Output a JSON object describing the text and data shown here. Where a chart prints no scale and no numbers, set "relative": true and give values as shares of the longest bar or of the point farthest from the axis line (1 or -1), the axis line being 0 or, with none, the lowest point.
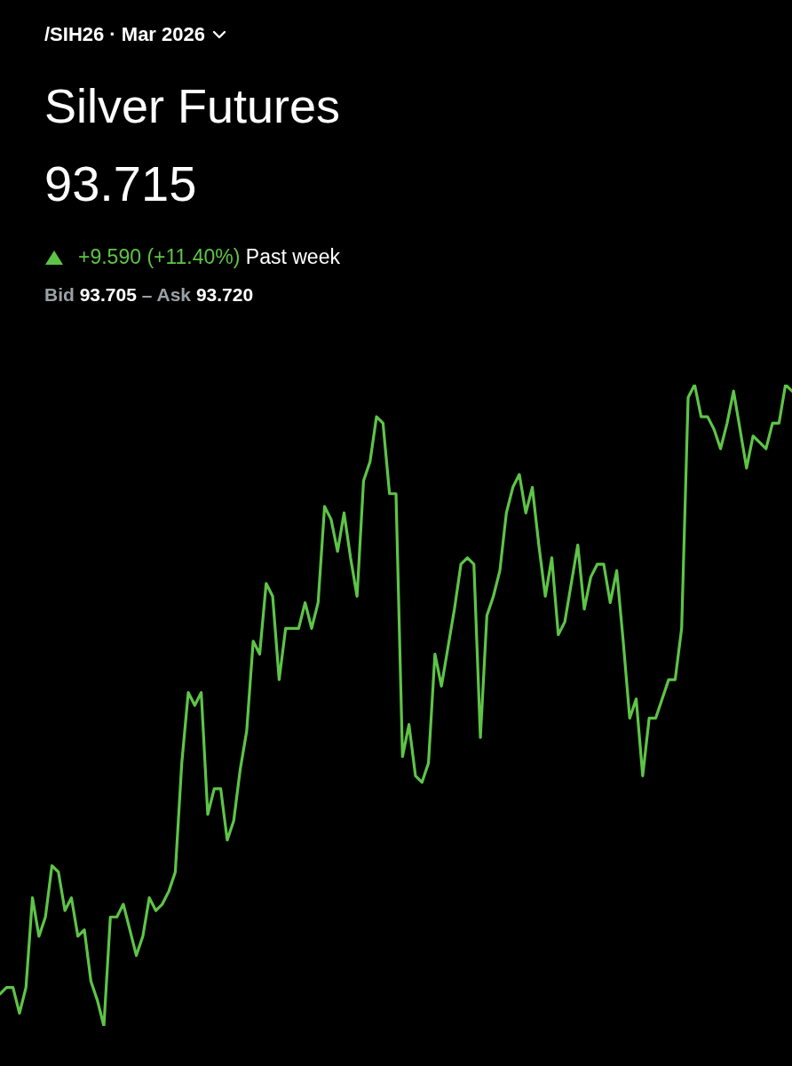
{
  "chart_data": {
    "type": "line",
    "title": "Silver Futures",
    "subtitle": "93.715",
    "annotations": [
      "/SIH26 · Mar 2026",
      "+9.590 (+11.40%)",
      "Past week",
      "Bid",
      "93.705",
      "–",
      "Ask",
      "93.720"
    ],
    "relative": true,
    "legend": false,
    "marker": "none",
    "line_style": "solid",
    "categories": [
      null,
      null,
      null,
      null,
      null,
      null,
      null,
      null,
      null,
      null,
      null,
      null,
      null,
      null,
      null,
      null,
      null,
      null,
      null,
      null,
      null,
      null,
      null,
      null,
      null,
      null,
      null,
      null,
      null,
      null,
      null,
      null,
      null,
      null,
      null,
      null,
      null,
      null,
      null,
      null,
      null,
      null,
      null,
      null,
      null,
      null,
      null,
      null,
      null,
      null,
      null,
      null,
      null,
      null,
      null,
      null,
      null,
      null,
      null,
      null,
      null,
      null,
      null,
      null,
      null,
      null,
      null,
      null,
      null,
      null,
      null,
      null,
      null,
      null,
      null,
      null,
      null,
      null,
      null,
      null,
      null,
      null,
      null,
      null,
      null,
      null,
      null,
      null,
      null,
      null,
      null,
      null,
      null,
      null,
      null,
      null,
      null,
      null,
      null,
      null,
      null,
      null,
      null,
      null,
      null,
      null,
      null,
      null,
      null,
      null,
      null,
      null,
      null,
      null,
      null,
      null,
      null,
      null,
      null,
      null,
      null,
      null,
      null
    ],
    "series": [
      {
        "color": "#5ec447",
        "values": [
          0.05,
          0.06,
          0.06,
          0.02,
          0.06,
          0.2,
          0.14,
          0.17,
          0.25,
          0.24,
          0.18,
          0.2,
          0.14,
          0.15,
          0.07,
          0.04,
          0,
          0.17,
          0.17,
          0.19,
          0.15,
          0.11,
          0.14,
          0.2,
          0.18,
          0.19,
          0.21,
          0.24,
          0.41,
          0.52,
          0.5,
          0.52,
          0.33,
          0.37,
          0.37,
          0.29,
          0.32,
          0.4,
          0.46,
          0.6,
          0.58,
          0.69,
          0.67,
          0.54,
          0.62,
          0.62,
          0.62,
          0.66,
          0.62,
          0.66,
          0.81,
          0.79,
          0.74,
          0.8,
          0.73,
          0.67,
          0.85,
          0.88,
          0.95,
          0.94,
          0.83,
          0.83,
          0.42,
          0.47,
          0.39,
          0.38,
          0.41,
          0.58,
          0.53,
          0.59,
          0.65,
          0.72,
          0.73,
          0.72,
          0.45,
          0.64,
          0.67,
          0.71,
          0.8,
          0.84,
          0.86,
          0.8,
          0.84,
          0.75,
          0.67,
          0.73,
          0.61,
          0.63,
          0.69,
          0.75,
          0.65,
          0.7,
          0.72,
          0.72,
          0.66,
          0.71,
          0.6,
          0.48,
          0.51,
          0.39,
          0.48,
          0.48,
          0.51,
          0.54,
          0.54,
          0.62,
          0.98,
          1,
          0.95,
          0.95,
          0.93,
          0.9,
          0.94,
          0.99,
          0.93,
          0.87,
          0.92,
          0.91,
          0.9,
          0.94,
          0.94,
          1,
          0.99
        ]
      }
    ]
  }
}
